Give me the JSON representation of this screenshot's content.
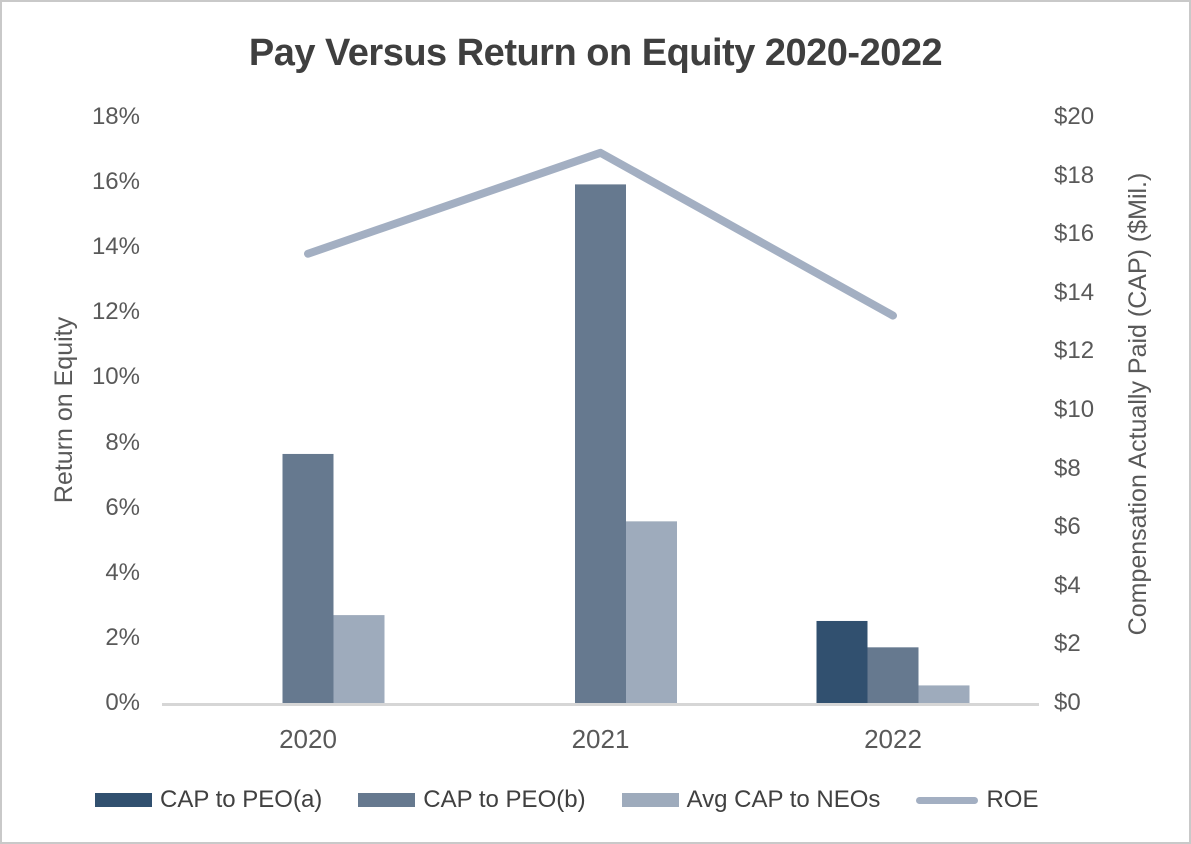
{
  "chart_data": {
    "type": "bar",
    "subtype": "grouped-bar-with-line-combo",
    "title": "Pay Versus Return on Equity 2020-2022",
    "categories": [
      "2020",
      "2021",
      "2022"
    ],
    "series": [
      {
        "name": "CAP to PEO(a)",
        "type": "bar",
        "axis": "right",
        "color": "#31506F",
        "values": [
          null,
          null,
          2.8
        ]
      },
      {
        "name": "CAP to PEO(b)",
        "type": "bar",
        "axis": "right",
        "color": "#66798F",
        "values": [
          8.5,
          17.7,
          1.9
        ]
      },
      {
        "name": "Avg CAP to NEOs",
        "type": "bar",
        "axis": "right",
        "color": "#9EABBC",
        "values": [
          3.0,
          6.2,
          0.6
        ]
      },
      {
        "name": "ROE",
        "type": "line",
        "axis": "left",
        "color": "#A3AFC2",
        "values": [
          13.8,
          16.9,
          11.9
        ]
      }
    ],
    "left_axis": {
      "label": "Return on Equity",
      "unit": "%",
      "min": 0,
      "max": 18,
      "ticks": [
        {
          "label": "0%",
          "value": 0
        },
        {
          "label": "2%",
          "value": 2
        },
        {
          "label": "4%",
          "value": 4
        },
        {
          "label": "6%",
          "value": 6
        },
        {
          "label": "8%",
          "value": 8
        },
        {
          "label": "10%",
          "value": 10
        },
        {
          "label": "12%",
          "value": 12
        },
        {
          "label": "14%",
          "value": 14
        },
        {
          "label": "16%",
          "value": 16
        },
        {
          "label": "18%",
          "value": 18
        }
      ]
    },
    "right_axis": {
      "label": "Compensation Actually Paid (CAP) ($Mil.)",
      "unit": "$Mil.",
      "min": 0,
      "max": 20,
      "ticks": [
        {
          "label": "$0",
          "value": 0
        },
        {
          "label": "$2",
          "value": 2
        },
        {
          "label": "$4",
          "value": 4
        },
        {
          "label": "$6",
          "value": 6
        },
        {
          "label": "$8",
          "value": 8
        },
        {
          "label": "$10",
          "value": 10
        },
        {
          "label": "$12",
          "value": 12
        },
        {
          "label": "$14",
          "value": 14
        },
        {
          "label": "$16",
          "value": 16
        },
        {
          "label": "$18",
          "value": 18
        },
        {
          "label": "$20",
          "value": 20
        }
      ]
    },
    "legend_position": "bottom",
    "grid": false
  },
  "colors": {
    "title_text": "#3F3F3F",
    "axis_text": "#595959",
    "axis_line": "#D6D6D6",
    "frame_border": "#C9C9C9",
    "background": "#FFFFFF"
  }
}
